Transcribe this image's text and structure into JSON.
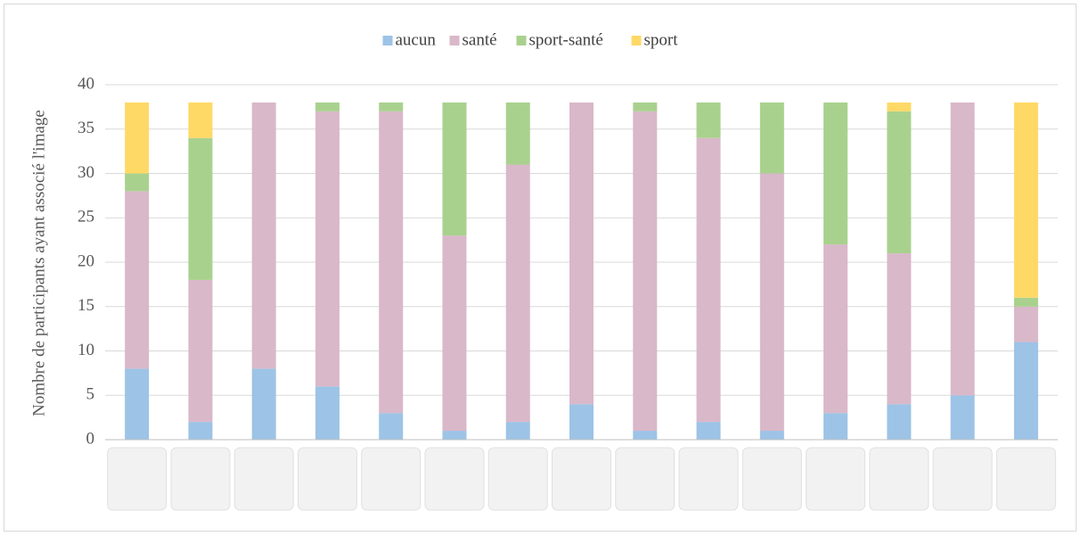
{
  "chart_data": {
    "type": "stacked_bar",
    "y_label": "Nombre de participants ayant associé l'image",
    "categories": [
      null,
      null,
      null,
      null,
      null,
      null,
      null,
      null,
      null,
      null,
      null,
      null,
      null,
      null,
      null
    ],
    "series": [
      {
        "name": "aucun",
        "color": "#9dc3e6",
        "values": [
          8,
          2,
          8,
          6,
          3,
          1,
          2,
          4,
          1,
          2,
          1,
          3,
          4,
          5,
          11
        ]
      },
      {
        "name": "santé",
        "color": "#d9b8c9",
        "values": [
          20,
          16,
          30,
          31,
          34,
          22,
          29,
          34,
          36,
          32,
          29,
          19,
          17,
          33,
          4
        ]
      },
      {
        "name": "sport-santé",
        "color": "#a9d18e",
        "values": [
          2,
          16,
          0,
          1,
          1,
          15,
          7,
          0,
          1,
          4,
          8,
          16,
          16,
          0,
          1
        ]
      },
      {
        "name": "sport",
        "color": "#ffd966",
        "values": [
          8,
          4,
          0,
          0,
          0,
          0,
          0,
          0,
          0,
          0,
          0,
          0,
          1,
          0,
          22
        ]
      }
    ],
    "ylim": [
      0,
      40
    ],
    "yticks": [
      0,
      5,
      10,
      15,
      20,
      25,
      30,
      35,
      40
    ],
    "grid": true,
    "legend": "top"
  }
}
